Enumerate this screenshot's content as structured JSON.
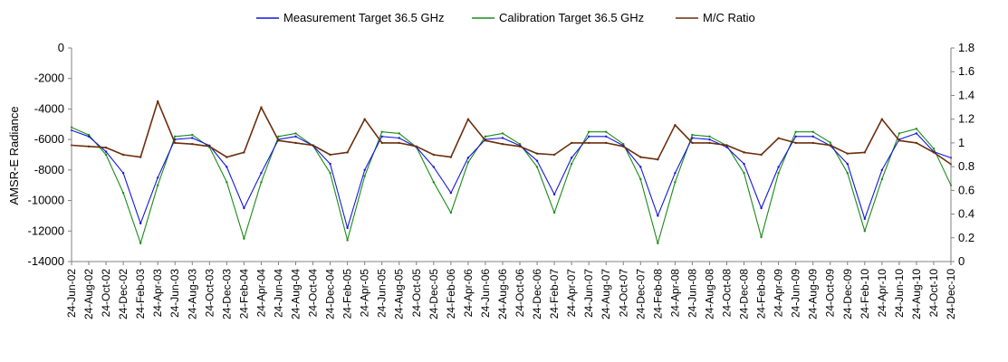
{
  "chart_data": {
    "type": "line",
    "ylabel": "AMSR-E Radiance",
    "ylim_left": [
      -14000,
      0
    ],
    "yticks_left": [
      "0",
      "-2000",
      "-4000",
      "-6000",
      "-8000",
      "-10000",
      "-12000",
      "-14000"
    ],
    "ylim_right": [
      0,
      1.8
    ],
    "yticks_right": [
      "1.8",
      "1.6",
      "1.4",
      "1.2",
      "1",
      "0.8",
      "0.6",
      "0.4",
      "0.2",
      "0"
    ],
    "x_range": [
      "24-Jun-02",
      "24-Dec-10"
    ],
    "x_tick_labels": [
      "24-Jun-02",
      "24-Aug-02",
      "24-Oct-02",
      "24-Dec-02",
      "24-Feb-03",
      "24-Apr-03",
      "24-Jun-03",
      "24-Aug-03",
      "24-Oct-03",
      "24-Dec-03",
      "24-Feb-04",
      "24-Apr-04",
      "24-Jun-04",
      "24-Aug-04",
      "24-Oct-04",
      "24-Dec-04",
      "24-Feb-05",
      "24-Apr-05",
      "24-Jun-05",
      "24-Aug-05",
      "24-Oct-05",
      "24-Dec-05",
      "24-Feb-06",
      "24-Apr-06",
      "24-Jun-06",
      "24-Aug-06",
      "24-Oct-06",
      "24-Dec-06",
      "24-Feb-07",
      "24-Apr-07",
      "24-Jun-07",
      "24-Aug-07",
      "24-Oct-07",
      "24-Dec-07",
      "24-Feb-08",
      "24-Apr-08",
      "24-Jun-08",
      "24-Aug-08",
      "24-Oct-08",
      "24-Dec-08",
      "24-Feb-09",
      "24-Apr-09",
      "24-Jun-09",
      "24-Aug-09",
      "24-Oct-09",
      "24-Dec-09",
      "24-Feb-10",
      "24-Apr-10",
      "24-Jun-10",
      "24-Aug-10",
      "24-Oct-10",
      "24-Dec-10"
    ],
    "grid": false,
    "legend_position": "top",
    "series": [
      {
        "name": "Measurement Target 36.5 GHz",
        "color": "#1515e0",
        "axis": "left",
        "x": [
          "24-Jun-02",
          "24-Aug-02",
          "24-Oct-02",
          "24-Dec-02",
          "24-Feb-03",
          "24-Apr-03",
          "24-Jun-03",
          "24-Aug-03",
          "24-Oct-03",
          "24-Dec-03",
          "24-Feb-04",
          "24-Apr-04",
          "24-Jun-04",
          "24-Aug-04",
          "24-Oct-04",
          "24-Dec-04",
          "24-Feb-05",
          "24-Apr-05",
          "24-Jun-05",
          "24-Aug-05",
          "24-Oct-05",
          "24-Dec-05",
          "24-Feb-06",
          "24-Apr-06",
          "24-Jun-06",
          "24-Aug-06",
          "24-Oct-06",
          "24-Dec-06",
          "24-Feb-07",
          "24-Apr-07",
          "24-Jun-07",
          "24-Aug-07",
          "24-Oct-07",
          "24-Dec-07",
          "24-Feb-08",
          "24-Apr-08",
          "24-Jun-08",
          "24-Aug-08",
          "24-Oct-08",
          "24-Dec-08",
          "24-Feb-09",
          "24-Apr-09",
          "24-Jun-09",
          "24-Aug-09",
          "24-Oct-09",
          "24-Dec-09",
          "24-Feb-10",
          "24-Apr-10",
          "24-Jun-10",
          "24-Aug-10",
          "24-Oct-10",
          "24-Dec-10"
        ],
        "values": [
          -5400,
          -5800,
          -6800,
          -8200,
          -11500,
          -8500,
          -6000,
          -5900,
          -6400,
          -7800,
          -10500,
          -8200,
          -6000,
          -5800,
          -6400,
          -7600,
          -11800,
          -8000,
          -5800,
          -5900,
          -6500,
          -7800,
          -9500,
          -7200,
          -6000,
          -5900,
          -6400,
          -7400,
          -9600,
          -7200,
          -5800,
          -5800,
          -6400,
          -7800,
          -11000,
          -8200,
          -5900,
          -6000,
          -6500,
          -7600,
          -10500,
          -7800,
          -5800,
          -5800,
          -6400,
          -7600,
          -11200,
          -8000,
          -6000,
          -5600,
          -6800,
          -7200
        ]
      },
      {
        "name": "Calibration Target 36.5 GHz",
        "color": "#1a8c1a",
        "axis": "left",
        "x": [
          "24-Jun-02",
          "24-Aug-02",
          "24-Oct-02",
          "24-Dec-02",
          "24-Feb-03",
          "24-Apr-03",
          "24-Jun-03",
          "24-Aug-03",
          "24-Oct-03",
          "24-Dec-03",
          "24-Feb-04",
          "24-Apr-04",
          "24-Jun-04",
          "24-Aug-04",
          "24-Oct-04",
          "24-Dec-04",
          "24-Feb-05",
          "24-Apr-05",
          "24-Jun-05",
          "24-Aug-05",
          "24-Oct-05",
          "24-Dec-05",
          "24-Feb-06",
          "24-Apr-06",
          "24-Jun-06",
          "24-Aug-06",
          "24-Oct-06",
          "24-Dec-06",
          "24-Feb-07",
          "24-Apr-07",
          "24-Jun-07",
          "24-Aug-07",
          "24-Oct-07",
          "24-Dec-07",
          "24-Feb-08",
          "24-Apr-08",
          "24-Jun-08",
          "24-Aug-08",
          "24-Oct-08",
          "24-Dec-08",
          "24-Feb-09",
          "24-Apr-09",
          "24-Jun-09",
          "24-Aug-09",
          "24-Oct-09",
          "24-Dec-09",
          "24-Feb-10",
          "24-Apr-10",
          "24-Jun-10",
          "24-Aug-10",
          "24-Oct-10",
          "24-Dec-10"
        ],
        "values": [
          -5200,
          -5700,
          -7000,
          -9500,
          -12800,
          -9000,
          -5800,
          -5700,
          -6500,
          -8800,
          -12500,
          -8800,
          -5800,
          -5600,
          -6400,
          -8200,
          -12600,
          -8400,
          -5500,
          -5600,
          -6500,
          -8800,
          -10800,
          -7500,
          -5800,
          -5600,
          -6300,
          -7800,
          -10800,
          -7600,
          -5500,
          -5500,
          -6300,
          -8600,
          -12800,
          -8800,
          -5700,
          -5800,
          -6400,
          -8200,
          -12400,
          -8200,
          -5500,
          -5500,
          -6200,
          -8200,
          -12000,
          -8600,
          -5600,
          -5300,
          -6600,
          -9000
        ]
      },
      {
        "name": "M/C Ratio",
        "color": "#6b2e0c",
        "axis": "right",
        "x": [
          "24-Jun-02",
          "24-Aug-02",
          "24-Oct-02",
          "24-Dec-02",
          "24-Feb-03",
          "24-Apr-03",
          "24-Jun-03",
          "24-Aug-03",
          "24-Oct-03",
          "24-Dec-03",
          "24-Feb-04",
          "24-Apr-04",
          "24-Jun-04",
          "24-Aug-04",
          "24-Oct-04",
          "24-Dec-04",
          "24-Feb-05",
          "24-Apr-05",
          "24-Jun-05",
          "24-Aug-05",
          "24-Oct-05",
          "24-Dec-05",
          "24-Feb-06",
          "24-Apr-06",
          "24-Jun-06",
          "24-Aug-06",
          "24-Oct-06",
          "24-Dec-06",
          "24-Feb-07",
          "24-Apr-07",
          "24-Jun-07",
          "24-Aug-07",
          "24-Oct-07",
          "24-Dec-07",
          "24-Feb-08",
          "24-Apr-08",
          "24-Jun-08",
          "24-Aug-08",
          "24-Oct-08",
          "24-Dec-08",
          "24-Feb-09",
          "24-Apr-09",
          "24-Jun-09",
          "24-Aug-09",
          "24-Oct-09",
          "24-Dec-09",
          "24-Feb-10",
          "24-Apr-10",
          "24-Jun-10",
          "24-Aug-10",
          "24-Oct-10",
          "24-Dec-10"
        ],
        "values": [
          0.98,
          0.97,
          0.96,
          0.9,
          0.88,
          1.35,
          1.0,
          0.99,
          0.97,
          0.88,
          0.92,
          1.3,
          1.02,
          1.0,
          0.98,
          0.9,
          0.92,
          1.2,
          1.0,
          1.0,
          0.97,
          0.9,
          0.88,
          1.2,
          1.02,
          0.99,
          0.97,
          0.91,
          0.9,
          1.0,
          1.0,
          1.0,
          0.97,
          0.88,
          0.86,
          1.15,
          1.0,
          1.0,
          0.98,
          0.92,
          0.9,
          1.04,
          1.0,
          1.0,
          0.98,
          0.91,
          0.92,
          1.2,
          1.02,
          1.0,
          0.92,
          0.82
        ]
      }
    ]
  }
}
